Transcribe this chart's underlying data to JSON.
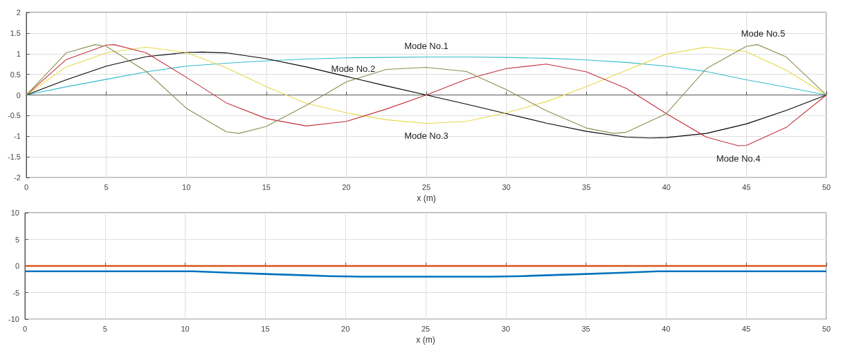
{
  "chart_data": [
    {
      "type": "line",
      "xlabel": "x (m)",
      "xlim": [
        0,
        50
      ],
      "xticks": [
        0,
        5,
        10,
        15,
        20,
        25,
        30,
        35,
        40,
        45,
        50
      ],
      "ylim": [
        -2,
        2
      ],
      "yticks": [
        -2,
        -1.5,
        -1,
        -0.5,
        0,
        0.5,
        1,
        1.5,
        2
      ],
      "grid": true,
      "series": [
        {
          "name": "Mode No.1",
          "color": "#33bbcc",
          "x": [
            0,
            2.5,
            5,
            7.5,
            10,
            12.5,
            15,
            17.5,
            20,
            22.5,
            25,
            27.5,
            30,
            32.5,
            35,
            37.5,
            40,
            42.5,
            45,
            47.5,
            50
          ],
          "values": [
            0,
            0.2,
            0.38,
            0.56,
            0.7,
            0.77,
            0.83,
            0.87,
            0.9,
            0.91,
            0.92,
            0.92,
            0.91,
            0.89,
            0.85,
            0.79,
            0.7,
            0.57,
            0.37,
            0.19,
            0
          ]
        },
        {
          "name": "Mode No.2",
          "color": "#000000",
          "x": [
            0,
            2.5,
            5,
            7.5,
            10,
            11,
            12.5,
            15,
            17.5,
            20,
            22.5,
            25,
            27.5,
            30,
            32.5,
            35,
            37.5,
            39,
            40,
            42.5,
            45,
            47.5,
            50
          ],
          "values": [
            0,
            0.37,
            0.7,
            0.93,
            1.03,
            1.04,
            1.02,
            0.88,
            0.68,
            0.45,
            0.22,
            0,
            -0.22,
            -0.45,
            -0.68,
            -0.88,
            -1.02,
            -1.04,
            -1.03,
            -0.93,
            -0.7,
            -0.37,
            0
          ]
        },
        {
          "name": "Mode No.3",
          "color": "#e8d84a",
          "x": [
            0,
            2.5,
            5,
            7.5,
            10,
            12.5,
            15,
            17.5,
            20,
            22.5,
            25,
            27.5,
            30,
            32.5,
            35,
            37.5,
            40,
            42.5,
            45,
            47.5,
            50
          ],
          "values": [
            0,
            0.68,
            1.02,
            1.16,
            1.03,
            0.66,
            0.2,
            -0.2,
            -0.43,
            -0.6,
            -0.69,
            -0.64,
            -0.43,
            -0.16,
            0.2,
            0.6,
            0.99,
            1.16,
            1.05,
            0.6,
            0
          ]
        },
        {
          "name": "Mode No.4",
          "color": "#c0303a",
          "x": [
            0,
            2.5,
            5,
            5.5,
            7.5,
            10,
            12.5,
            15,
            17.5,
            20,
            22.5,
            25,
            27.5,
            30,
            32.5,
            35,
            37.5,
            40,
            42.5,
            44.5,
            45,
            47.5,
            50
          ],
          "values": [
            0,
            0.86,
            1.21,
            1.22,
            1.02,
            0.43,
            -0.19,
            -0.57,
            -0.75,
            -0.64,
            -0.34,
            0,
            0.38,
            0.64,
            0.75,
            0.56,
            0.16,
            -0.45,
            -1.02,
            -1.23,
            -1.22,
            -0.78,
            0
          ]
        },
        {
          "name": "Mode No.5",
          "color": "#8c8c50",
          "x": [
            0,
            2.5,
            4.3,
            5,
            7.5,
            10,
            12.5,
            13.3,
            15,
            17.5,
            20,
            22.5,
            25,
            27.5,
            30,
            32.5,
            35,
            36.7,
            37.5,
            40,
            42.5,
            45,
            45.7,
            47.5,
            50
          ],
          "values": [
            0,
            1.02,
            1.22,
            1.18,
            0.57,
            -0.32,
            -0.89,
            -0.93,
            -0.76,
            -0.25,
            0.32,
            0.62,
            0.67,
            0.57,
            0.13,
            -0.38,
            -0.8,
            -0.93,
            -0.9,
            -0.45,
            0.64,
            1.18,
            1.22,
            0.92,
            0
          ]
        }
      ]
    },
    {
      "type": "line",
      "xlabel": "x (m)",
      "xlim": [
        0,
        50
      ],
      "xticks": [
        0,
        5,
        10,
        15,
        20,
        25,
        30,
        35,
        40,
        45,
        50
      ],
      "ylim": [
        -10,
        10
      ],
      "yticks": [
        -10,
        -5,
        0,
        5,
        10
      ],
      "grid": true,
      "series": [
        {
          "color": "#d95319",
          "x": [
            0,
            50
          ],
          "values": [
            0,
            0
          ]
        },
        {
          "color": "#0072bd",
          "x": [
            0,
            10.5,
            13,
            15,
            17,
            19,
            21,
            29,
            31,
            33,
            35,
            37,
            39.5,
            50
          ],
          "values": [
            -1,
            -1,
            -1.3,
            -1.5,
            -1.7,
            -1.9,
            -2,
            -2,
            -1.9,
            -1.7,
            -1.5,
            -1.3,
            -1,
            -1
          ]
        }
      ]
    }
  ]
}
